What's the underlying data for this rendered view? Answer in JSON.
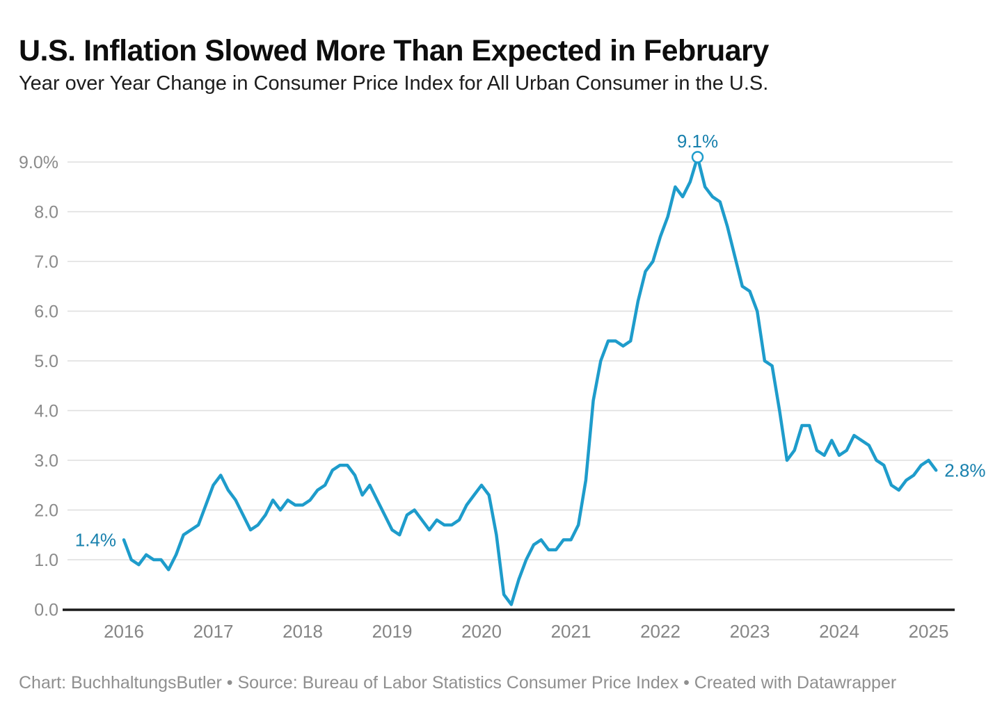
{
  "header": {
    "title": "U.S. Inflation Slowed More Than Expected in February",
    "subtitle": "Year over Year Change in Consumer Price Index for All Urban Consumer in the U.S."
  },
  "footer": {
    "text": "Chart: BuchhaltungsButler • Source: Bureau of Labor Statistics Consumer Price Index • Created with Datawrapper"
  },
  "chart_data": {
    "type": "line",
    "title": "U.S. Inflation Slowed More Than Expected in February",
    "subtitle": "Year over Year Change in Consumer Price Index for All Urban Consumer in the U.S.",
    "xlabel": "",
    "ylabel": "",
    "x_start": "2016-01",
    "x_end": "2025-02",
    "frequency": "monthly",
    "ylim": [
      0,
      9.5
    ],
    "grid": "horizontal",
    "legend": "none",
    "y_tick_labels": [
      "0.0",
      "1.0",
      "2.0",
      "3.0",
      "4.0",
      "5.0",
      "6.0",
      "7.0",
      "8.0",
      "9.0%"
    ],
    "x_tick_labels": [
      "2016",
      "2017",
      "2018",
      "2019",
      "2020",
      "2021",
      "2022",
      "2023",
      "2024",
      "2025"
    ],
    "series": [
      {
        "name": "CPI YoY % (All Urban Consumers)",
        "values": [
          1.4,
          1.0,
          0.9,
          1.1,
          1.0,
          1.0,
          0.8,
          1.1,
          1.5,
          1.6,
          1.7,
          2.1,
          2.5,
          2.7,
          2.4,
          2.2,
          1.9,
          1.6,
          1.7,
          1.9,
          2.2,
          2.0,
          2.2,
          2.1,
          2.1,
          2.2,
          2.4,
          2.5,
          2.8,
          2.9,
          2.9,
          2.7,
          2.3,
          2.5,
          2.2,
          1.9,
          1.6,
          1.5,
          1.9,
          2.0,
          1.8,
          1.6,
          1.8,
          1.7,
          1.7,
          1.8,
          2.1,
          2.3,
          2.5,
          2.3,
          1.5,
          0.3,
          0.1,
          0.6,
          1.0,
          1.3,
          1.4,
          1.2,
          1.2,
          1.4,
          1.4,
          1.7,
          2.6,
          4.2,
          5.0,
          5.4,
          5.4,
          5.3,
          5.4,
          6.2,
          6.8,
          7.0,
          7.5,
          7.9,
          8.5,
          8.3,
          8.6,
          9.1,
          8.5,
          8.3,
          8.2,
          7.7,
          7.1,
          6.5,
          6.4,
          6.0,
          5.0,
          4.9,
          4.0,
          3.0,
          3.2,
          3.7,
          3.7,
          3.2,
          3.1,
          3.4,
          3.1,
          3.2,
          3.5,
          3.4,
          3.3,
          3.0,
          2.9,
          2.5,
          2.4,
          2.6,
          2.7,
          2.9,
          3.0,
          2.8
        ]
      }
    ],
    "annotations": [
      {
        "label": "1.4%",
        "month": "2016-01",
        "value": 1.4,
        "position": "left",
        "marker": "none"
      },
      {
        "label": "9.1%",
        "month": "2022-06",
        "value": 9.1,
        "position": "top",
        "marker": "circle"
      },
      {
        "label": "2.8%",
        "month": "2025-02",
        "value": 2.8,
        "position": "right",
        "marker": "none"
      }
    ],
    "colors": {
      "line": "#1E9CCB",
      "annotation": "#1780AD",
      "grid": "#DEDEDE",
      "axis": "#1A1A1A",
      "y_tick_label": "#8A8A8A",
      "x_tick_label": "#858585",
      "title": "#0D0D0D",
      "subtitle": "#1C1C1C",
      "footer": "#8F8F8F"
    }
  }
}
